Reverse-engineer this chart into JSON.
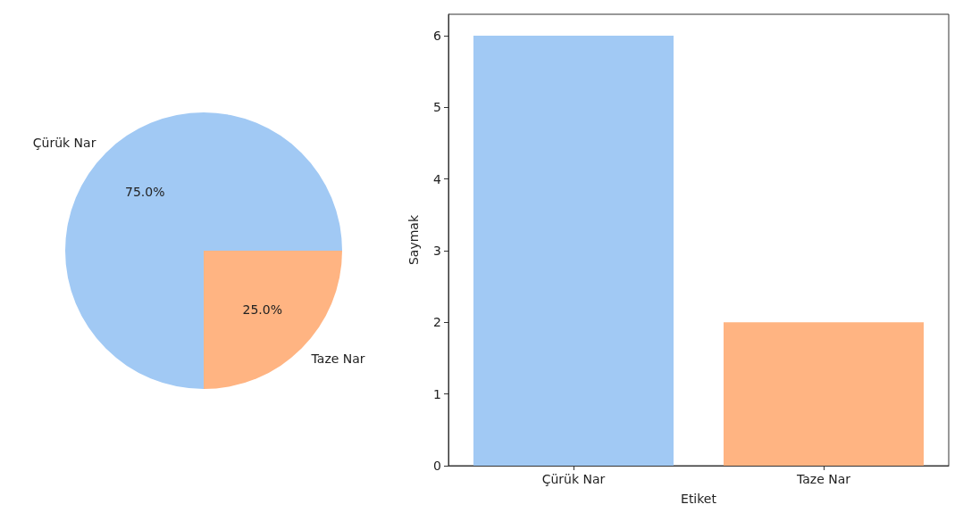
{
  "chart_data": [
    {
      "type": "pie",
      "categories": [
        "Çürük Nar",
        "Taze Nar"
      ],
      "values": [
        75,
        25
      ],
      "value_labels": [
        "75.0%",
        "25.0%"
      ],
      "colors": [
        "#a1c9f4",
        "#ffb482"
      ],
      "legend": false
    },
    {
      "type": "bar",
      "categories": [
        "Çürük Nar",
        "Taze Nar"
      ],
      "values": [
        6,
        2
      ],
      "colors": [
        "#a1c9f4",
        "#ffb482"
      ],
      "xlabel": "Etiket",
      "ylabel": "Saymak",
      "ylim": [
        0,
        6.3
      ],
      "yticks": [
        0,
        1,
        2,
        3,
        4,
        5,
        6
      ],
      "grid": false,
      "legend": false
    }
  ]
}
